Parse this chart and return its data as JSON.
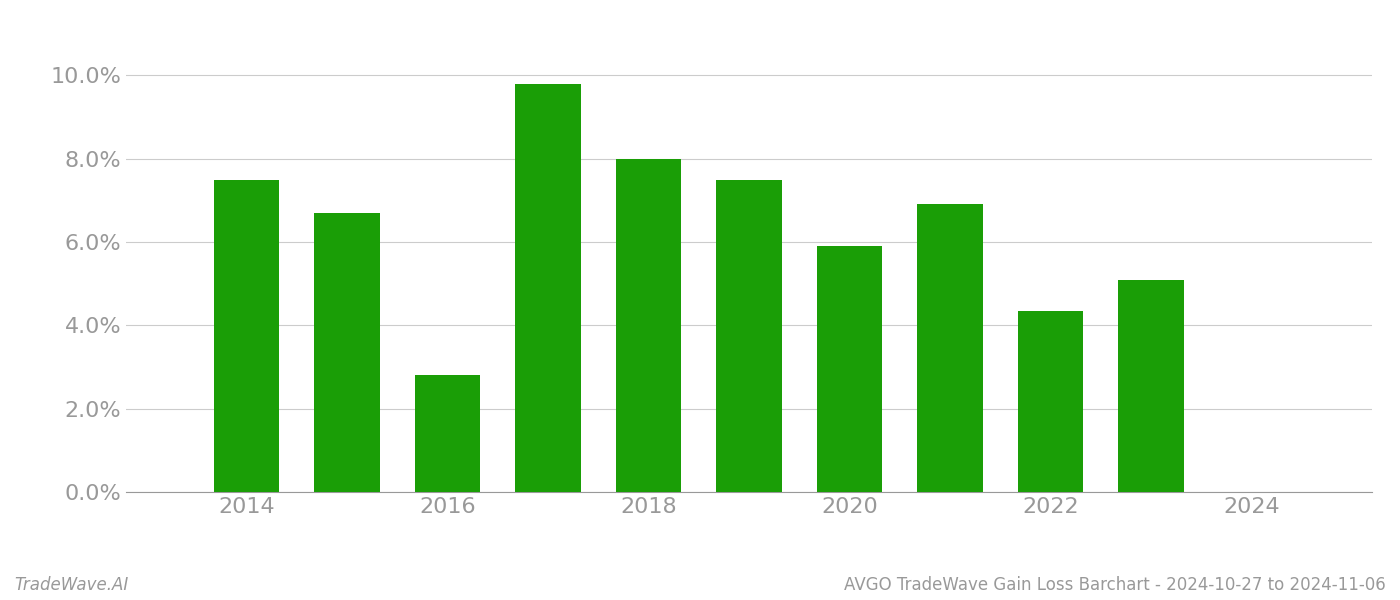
{
  "years": [
    2014,
    2015,
    2016,
    2017,
    2018,
    2019,
    2020,
    2021,
    2022,
    2023
  ],
  "values": [
    0.075,
    0.067,
    0.028,
    0.098,
    0.08,
    0.075,
    0.059,
    0.069,
    0.0435,
    0.051
  ],
  "bar_color": "#1a9e06",
  "title": "AVGO TradeWave Gain Loss Barchart - 2024-10-27 to 2024-11-06",
  "watermark": "TradeWave.AI",
  "ylim": [
    0,
    0.108
  ],
  "yticks": [
    0.0,
    0.02,
    0.04,
    0.06,
    0.08,
    0.1
  ],
  "xtick_years": [
    2014,
    2016,
    2018,
    2020,
    2022,
    2024
  ],
  "xlim": [
    2012.8,
    2025.2
  ],
  "background_color": "#ffffff",
  "grid_color": "#cccccc",
  "tick_color": "#999999",
  "title_fontsize": 12,
  "watermark_fontsize": 12,
  "ytick_fontsize": 16,
  "xtick_fontsize": 16,
  "bar_width": 0.65
}
